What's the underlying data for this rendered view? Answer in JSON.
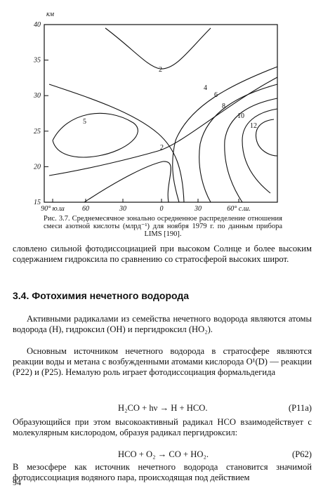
{
  "figure": {
    "y_unit": "км",
    "yticks": [
      "40",
      "35",
      "30",
      "25",
      "20",
      "15"
    ],
    "xticks": [
      "90° ю.ш",
      "60",
      "30",
      "0",
      "30",
      "60° с.ш."
    ],
    "contour_labels": [
      "2",
      "4",
      "6",
      "8",
      "10",
      "12",
      "5",
      "2"
    ],
    "caption": "Рис. 3.7. Среднемесячное зонально осредненное распределение отношения смеси азотной кислоты (млрд⁻¹) для ноября 1979 г. по данным прибора LIMS [190]."
  },
  "body": {
    "paragraph_1": "словлено сильной фотодиссоциацией при высоком Солнце и более высоким содержанием гидроксила по сравнению со стратосферой высоких широт.",
    "heading": "3.4. Фотохимия нечетного водорода",
    "paragraph_2": "Активными радикалами из семейства нечетного водорода являются атомы водорода (H), гидроксил (OH) и пергидроксил (HO₂).",
    "paragraph_3": "Основным источником нечетного водорода в стратосфере являются реакции воды и метана с возбужденными атомами кислорода O¹(D) — реакции (P22) и (P25). Немалую роль играет фотодиссоциация формальдегида",
    "equation_1": "H₂CO + hν → H + HCO.",
    "equation_1_label": "(P11a)",
    "paragraph_4": "Образующийся при этом высокоактивный радикал HCO взаимодействует с молекулярным кислородом, образуя радикал пергидроксил:",
    "equation_2": "HCO + O₂ → CO + HO₂.",
    "equation_2_label": "(P62)",
    "paragraph_5": "В мезосфере как источник нечетного водорода становится значимой фотодиссоциация водяного пара, происходящая под действием",
    "page_number": "94"
  }
}
